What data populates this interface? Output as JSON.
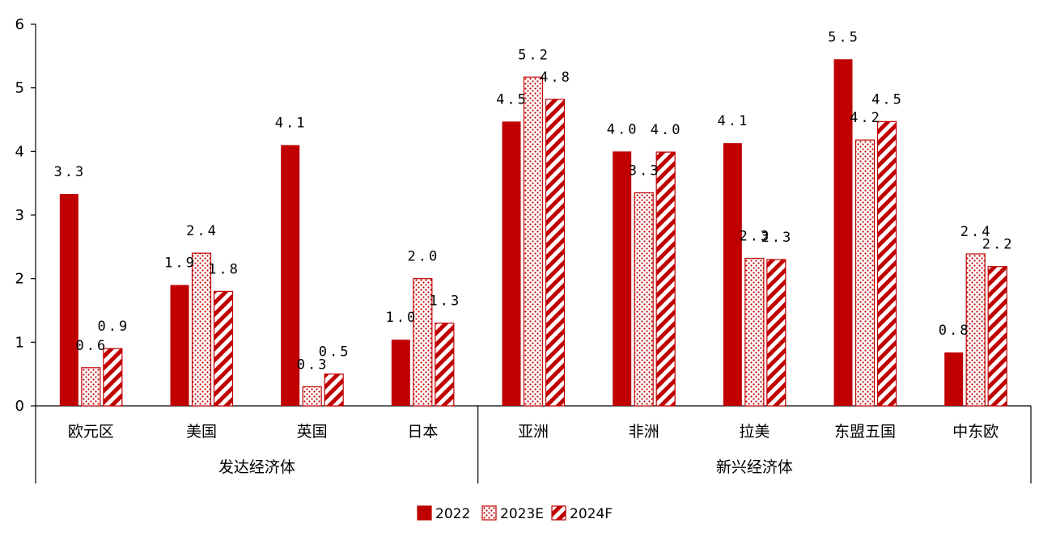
{
  "chart_data": {
    "type": "bar",
    "categories": [
      "欧元区",
      "美国",
      "英国",
      "日本",
      "亚洲",
      "非洲",
      "拉美",
      "东盟五国",
      "中东欧"
    ],
    "groups": [
      {
        "label": "发达经济体",
        "categories": [
          "欧元区",
          "美国",
          "英国",
          "日本"
        ]
      },
      {
        "label": "新兴经济体",
        "categories": [
          "亚洲",
          "非洲",
          "拉美",
          "东盟五国",
          "中东欧"
        ]
      }
    ],
    "series": [
      {
        "name": "2022",
        "values": [
          3.3,
          1.9,
          4.1,
          1.0,
          4.5,
          4.0,
          4.1,
          5.5,
          0.8
        ],
        "raw": [
          3.33,
          1.9,
          4.1,
          1.04,
          4.47,
          4.0,
          4.13,
          5.45,
          0.84
        ],
        "pattern": "solid"
      },
      {
        "name": "2023E",
        "values": [
          0.6,
          2.4,
          0.3,
          2.0,
          5.2,
          3.3,
          2.3,
          4.2,
          2.4
        ],
        "raw": [
          0.6,
          2.4,
          0.3,
          2.0,
          5.17,
          3.35,
          2.32,
          4.18,
          2.39
        ],
        "pattern": "dots"
      },
      {
        "name": "2024F",
        "values": [
          0.9,
          1.8,
          0.5,
          1.3,
          4.8,
          4.0,
          2.3,
          4.5,
          2.2
        ],
        "raw": [
          0.9,
          1.8,
          0.5,
          1.3,
          4.82,
          3.99,
          2.3,
          4.47,
          2.19
        ],
        "pattern": "diagonal"
      }
    ],
    "y_ticks": [
      "0",
      "1",
      "2",
      "3",
      "4",
      "5",
      "6"
    ],
    "ylim": [
      0,
      6
    ],
    "xlabel": "",
    "ylabel": "",
    "title": "",
    "legend_position": "bottom-center",
    "grid": false,
    "colors": {
      "bar": "#c00000",
      "background": "#ffffff",
      "axis": "#000000"
    }
  }
}
